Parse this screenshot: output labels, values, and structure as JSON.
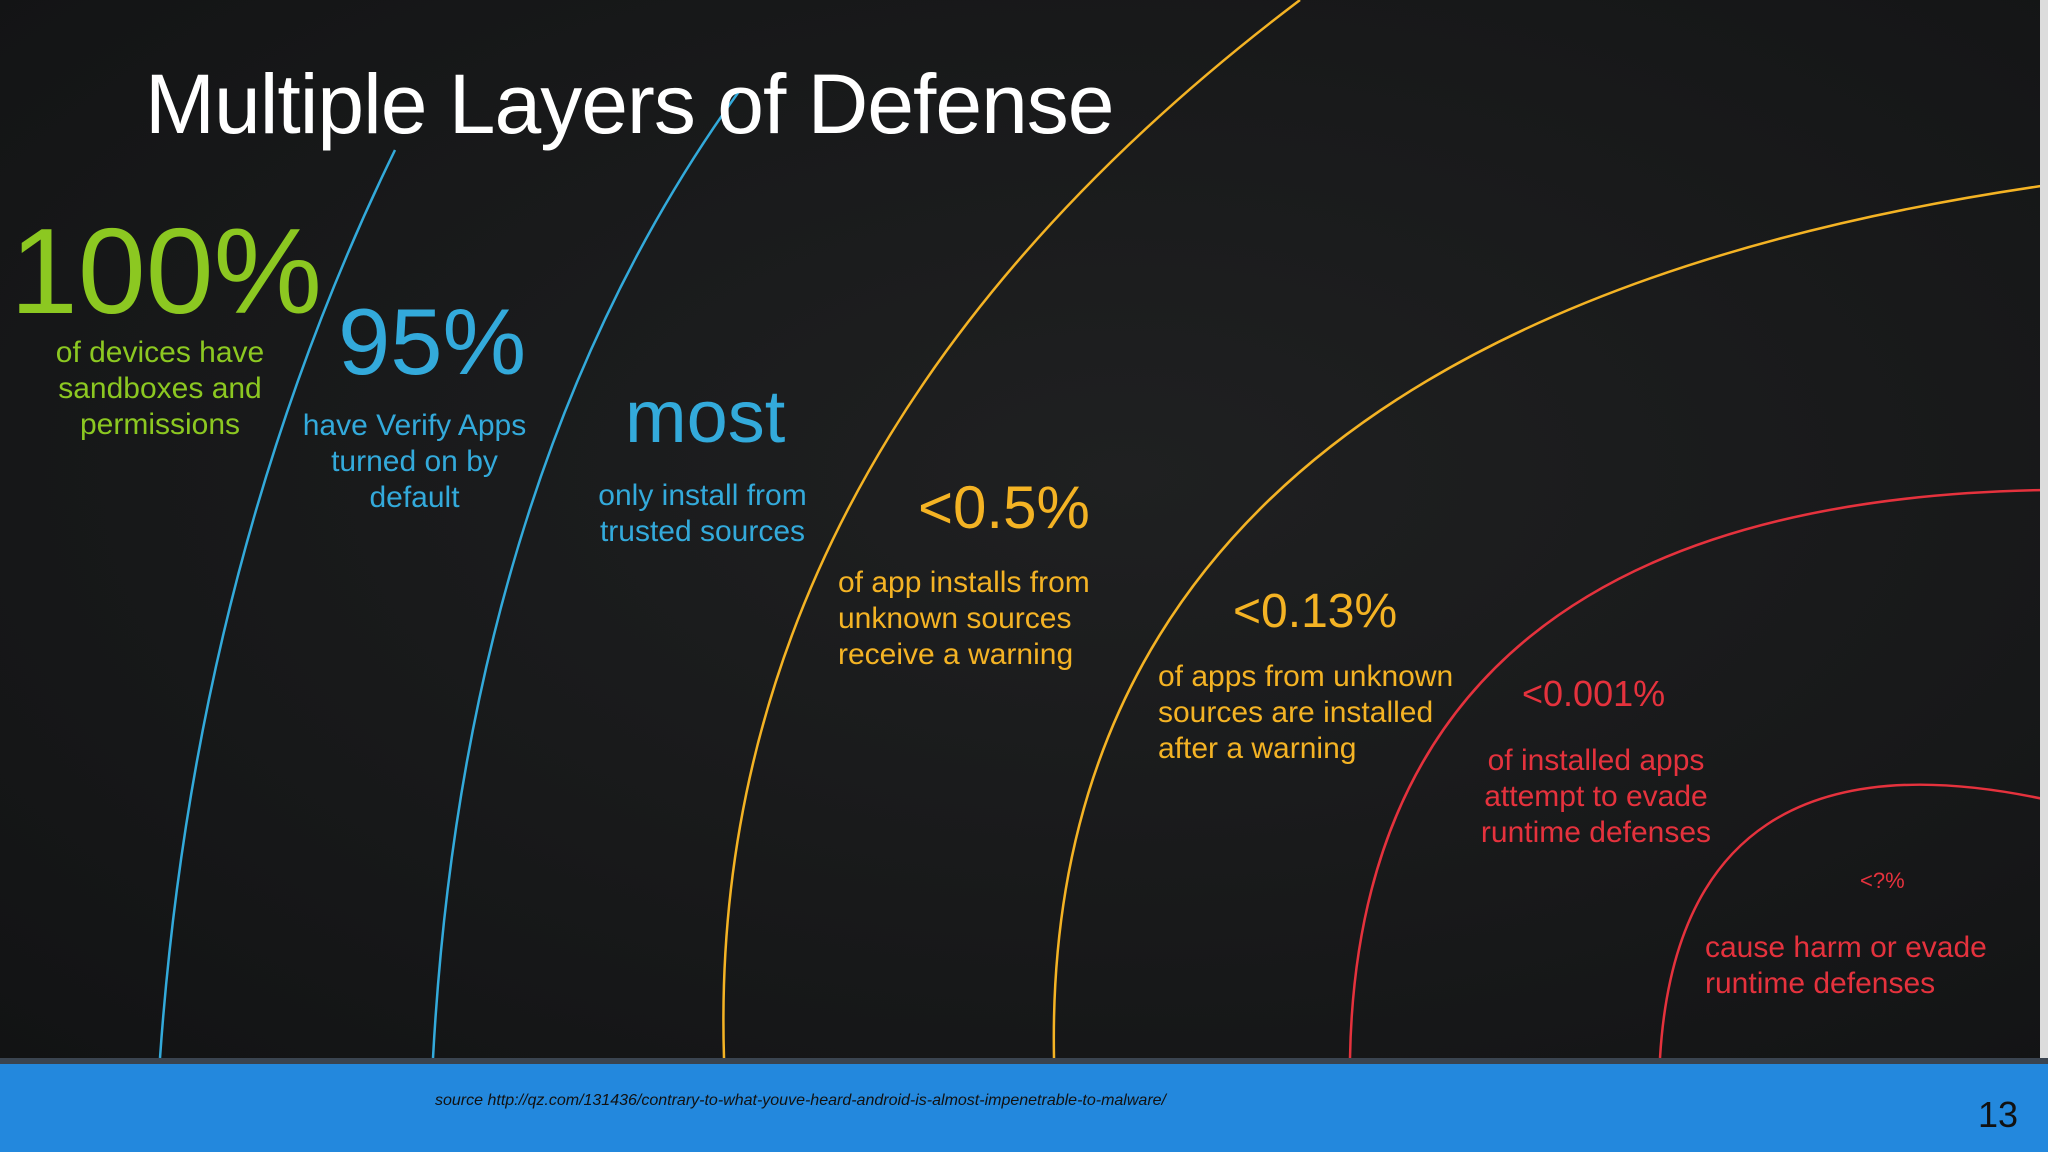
{
  "title": "Multiple Layers of Defense",
  "colors": {
    "green": "#8cc821",
    "blue": "#33aadb",
    "yellow": "#f4b324",
    "red": "#e5323d",
    "footer": "#2388dd"
  },
  "layers": [
    {
      "value": "100%",
      "text": "of devices have\nsandboxes and\npermissions",
      "color": "green"
    },
    {
      "value": "95%",
      "text": "have Verify Apps\nturned on by\ndefault",
      "color": "blue"
    },
    {
      "value": "most",
      "text": "only install from\ntrusted sources",
      "color": "blue"
    },
    {
      "value": "<0.5%",
      "text": "of app installs from\nunknown sources\nreceive a warning",
      "color": "yellow"
    },
    {
      "value": "<0.13%",
      "text": "of apps from unknown\nsources are installed\nafter a warning",
      "color": "yellow"
    },
    {
      "value": "<0.001%",
      "text": "of installed apps\nattempt to evade\nruntime defenses",
      "color": "red"
    },
    {
      "value": "<?%",
      "text": "cause harm or evade\nruntime defenses",
      "color": "red"
    }
  ],
  "footer": {
    "source": "source http://qz.com/131436/contrary-to-what-youve-heard-android-is-almost-impenetrable-to-malware/",
    "page_number": "13"
  }
}
